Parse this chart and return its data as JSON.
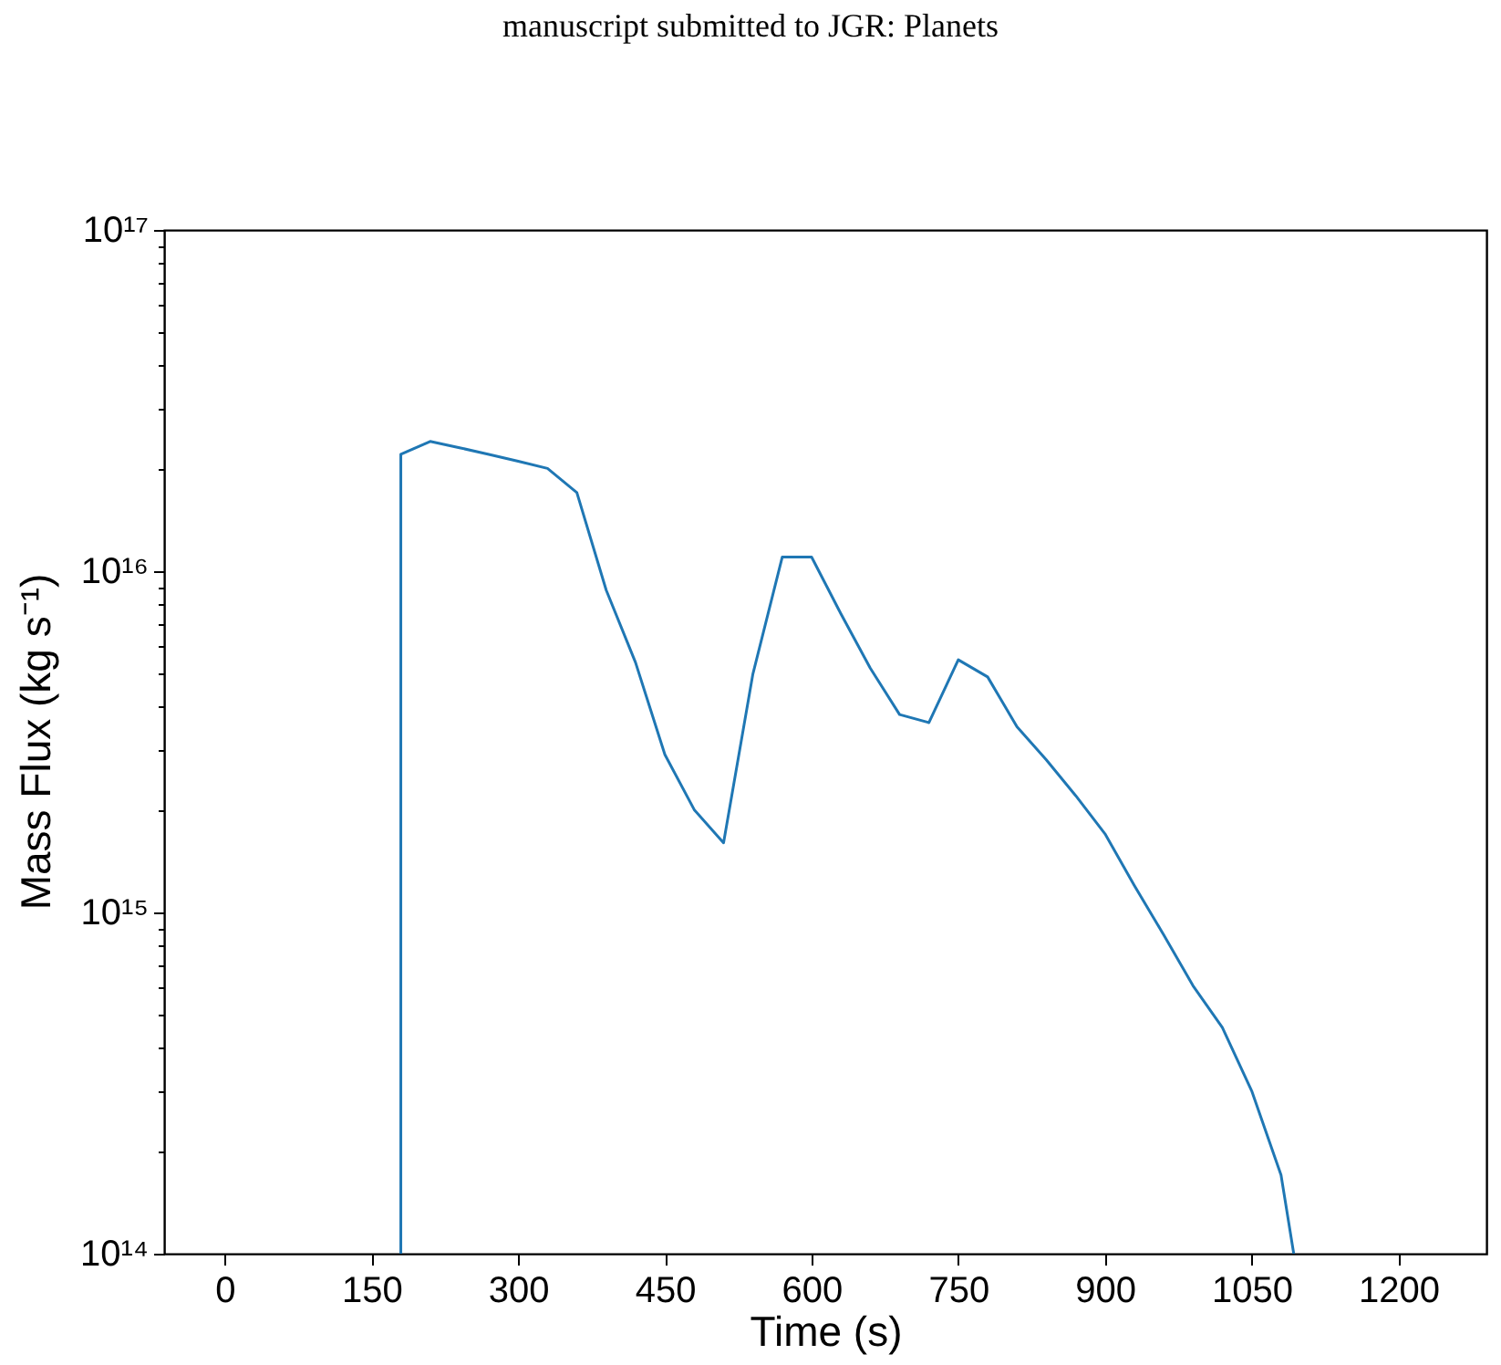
{
  "chart_data": {
    "type": "line",
    "annotations": [
      "manuscript submitted to JGR: Planets"
    ],
    "xlabel": "Time (s)",
    "ylabel": "Mass Flux (kg s⁻¹)",
    "log": true,
    "x": [
      180,
      180,
      210,
      240,
      270,
      300,
      330,
      360,
      390,
      420,
      450,
      480,
      510,
      540,
      570,
      600,
      630,
      660,
      690,
      720,
      750,
      780,
      810,
      840,
      870,
      900,
      930,
      960,
      990,
      1020,
      1050,
      1080,
      1093
    ],
    "series": [
      {
        "color": "#1f77b4",
        "values": [
          100000000000000.0,
          2.2e+16,
          2.4e+16,
          2.3e+16,
          2.2e+16,
          2.1e+16,
          2e+16,
          1.7e+16,
          8800000000000000.0,
          5400000000000000.0,
          2900000000000000.0,
          2000000000000000.0,
          1600000000000000.0,
          5000000000000000.0,
          1.1e+16,
          1.1e+16,
          7500000000000000.0,
          5200000000000000.0,
          3800000000000000.0,
          3600000000000000.0,
          5500000000000000.0,
          4900000000000000.0,
          3500000000000000.0,
          2800000000000000.0,
          2200000000000000.0,
          1700000000000000.0,
          1200000000000000.0,
          860000000000000.0,
          610000000000000.0,
          460000000000000.0,
          300000000000000.0,
          170000000000000.0,
          100000000000000.0
        ]
      }
    ],
    "xlim": [
      -62,
      1290
    ],
    "xticks": [
      0,
      150,
      300,
      450,
      600,
      750,
      900,
      1050,
      1200
    ],
    "ylim": [
      100000000000000.0,
      1e+17
    ],
    "yticks": [
      {
        "value": 100000000000000.0,
        "label": "10¹⁴"
      },
      {
        "value": 200000000000000.0,
        "label": null
      },
      {
        "value": 300000000000000.0,
        "label": null
      },
      {
        "value": 400000000000000.0,
        "label": null
      },
      {
        "value": 500000000000000.0,
        "label": null
      },
      {
        "value": 600000000000000.0,
        "label": null
      },
      {
        "value": 700000000000000.0,
        "label": null
      },
      {
        "value": 800000000000000.0,
        "label": null
      },
      {
        "value": 900000000000000.0,
        "label": null
      },
      {
        "value": 1000000000000000.0,
        "label": "10¹⁵"
      },
      {
        "value": 2000000000000000.0,
        "label": null
      },
      {
        "value": 3000000000000000.0,
        "label": null
      },
      {
        "value": 4000000000000000.0,
        "label": null
      },
      {
        "value": 5000000000000000.0,
        "label": null
      },
      {
        "value": 6000000000000000.0,
        "label": null
      },
      {
        "value": 7000000000000000.0,
        "label": null
      },
      {
        "value": 8000000000000000.0,
        "label": null
      },
      {
        "value": 9000000000000000.0,
        "label": null
      },
      {
        "value": 1e+16,
        "label": "10¹⁶"
      },
      {
        "value": 2e+16,
        "label": null
      },
      {
        "value": 3e+16,
        "label": null
      },
      {
        "value": 4e+16,
        "label": null
      },
      {
        "value": 5e+16,
        "label": null
      },
      {
        "value": 6e+16,
        "label": null
      },
      {
        "value": 7e+16,
        "label": null
      },
      {
        "value": 8e+16,
        "label": null
      },
      {
        "value": 9e+16,
        "label": null
      },
      {
        "value": 1e+17,
        "label": "10¹⁷"
      }
    ]
  }
}
